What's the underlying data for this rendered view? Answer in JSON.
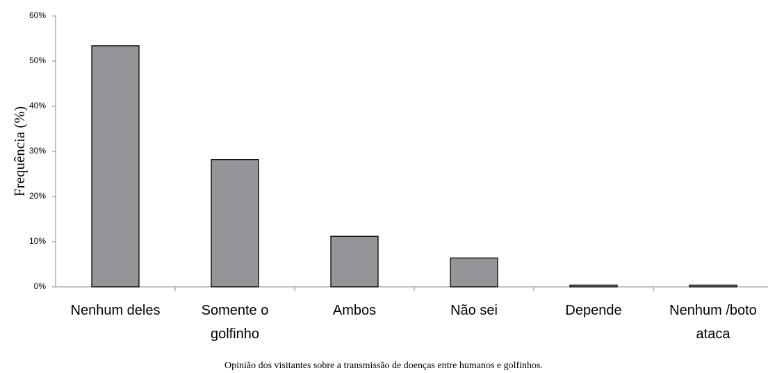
{
  "chart_data": {
    "type": "bar",
    "y_label": "Frequência (%)",
    "caption": "Opinião dos visitantes sobre a transmissão de doenças entre humanos e golfinhos.",
    "categories": [
      "Nenhum deles",
      "Somente o\ngolfinho",
      "Ambos",
      "Não sei",
      "Depende",
      "Nenhum /boto\nataca"
    ],
    "values": [
      53.4,
      28.2,
      11.2,
      6.4,
      0.4,
      0.4
    ],
    "color": "#939598",
    "ylim": [
      0,
      60
    ],
    "yticks": [
      {
        "value": 0,
        "label": "0%"
      },
      {
        "value": 10,
        "label": "10%"
      },
      {
        "value": 20,
        "label": "20%"
      },
      {
        "value": 30,
        "label": "30%"
      },
      {
        "value": 40,
        "label": "40%"
      },
      {
        "value": 50,
        "label": "50%"
      },
      {
        "value": 60,
        "label": "60%"
      }
    ],
    "grid": false
  }
}
